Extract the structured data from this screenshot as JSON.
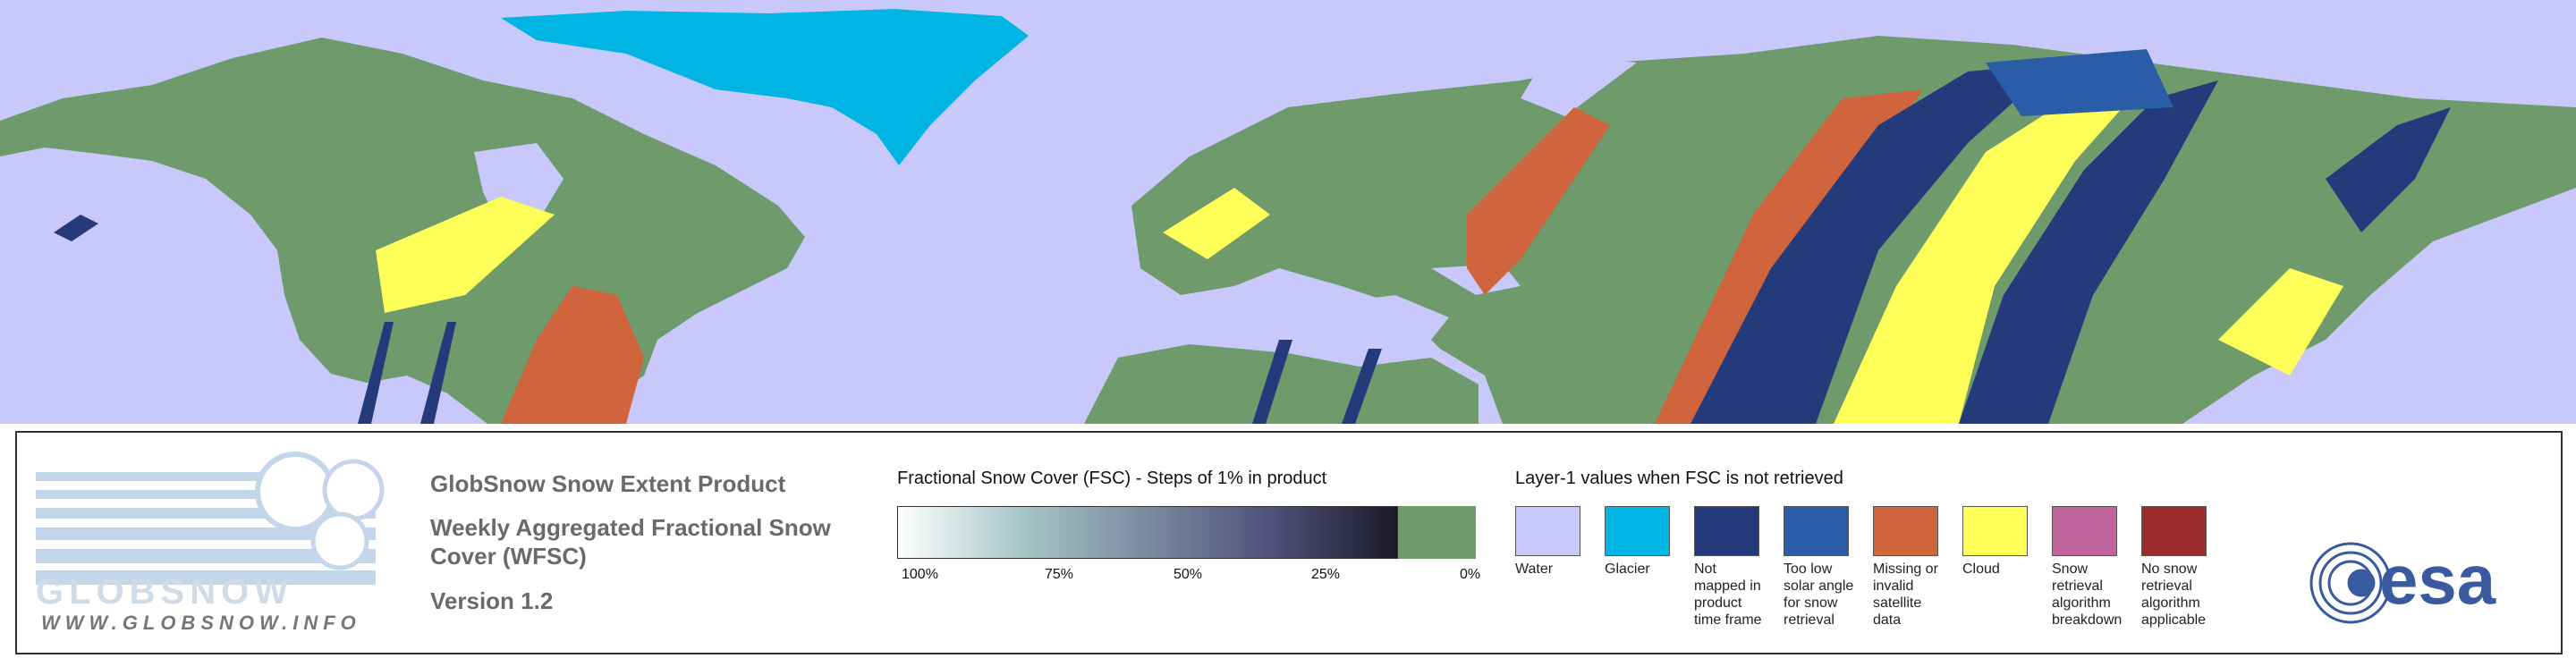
{
  "header": {
    "product": "GlobSnow Snow Extent Product",
    "subtitle": "Weekly Aggregated Fractional Snow Cover (WFSC)",
    "version": "Version 1.2"
  },
  "logo": {
    "name": "GLOBSNOW",
    "url": "WWW.GLOBSNOW.INFO",
    "agency": "esa"
  },
  "fsc_legend": {
    "title": "Fractional Snow Cover (FSC) - Steps of 1% in product",
    "labels": [
      "100%",
      "75%",
      "50%",
      "25%",
      "0%"
    ],
    "gradient": [
      "#ffffff",
      "#a6c6c6",
      "#7a8aa0",
      "#50507a",
      "#1a1a28"
    ],
    "zero_color": "#6f9a6b"
  },
  "layer1_legend": {
    "title": "Layer-1 values when FSC is not retrieved",
    "items": [
      {
        "label": "Water",
        "color": "#c8c8fa"
      },
      {
        "label": "Glacier",
        "color": "#00b4e4"
      },
      {
        "label": "Not\nmapped in\nproduct\ntime frame",
        "color": "#253a7a"
      },
      {
        "label": "Too low\nsolar angle\nfor snow\nretrieval",
        "color": "#2a5ca8"
      },
      {
        "label": "Missing or\ninvalid satellite\ndata",
        "color": "#d0643c"
      },
      {
        "label": "Cloud",
        "color": "#ffff5a"
      },
      {
        "label": "Snow retrieval\nalgorithm\nbreakdown",
        "color": "#c0649c"
      },
      {
        "label": "No snow\nretrieval\nalgorithm\napplicable",
        "color": "#9c2c2c"
      }
    ]
  }
}
